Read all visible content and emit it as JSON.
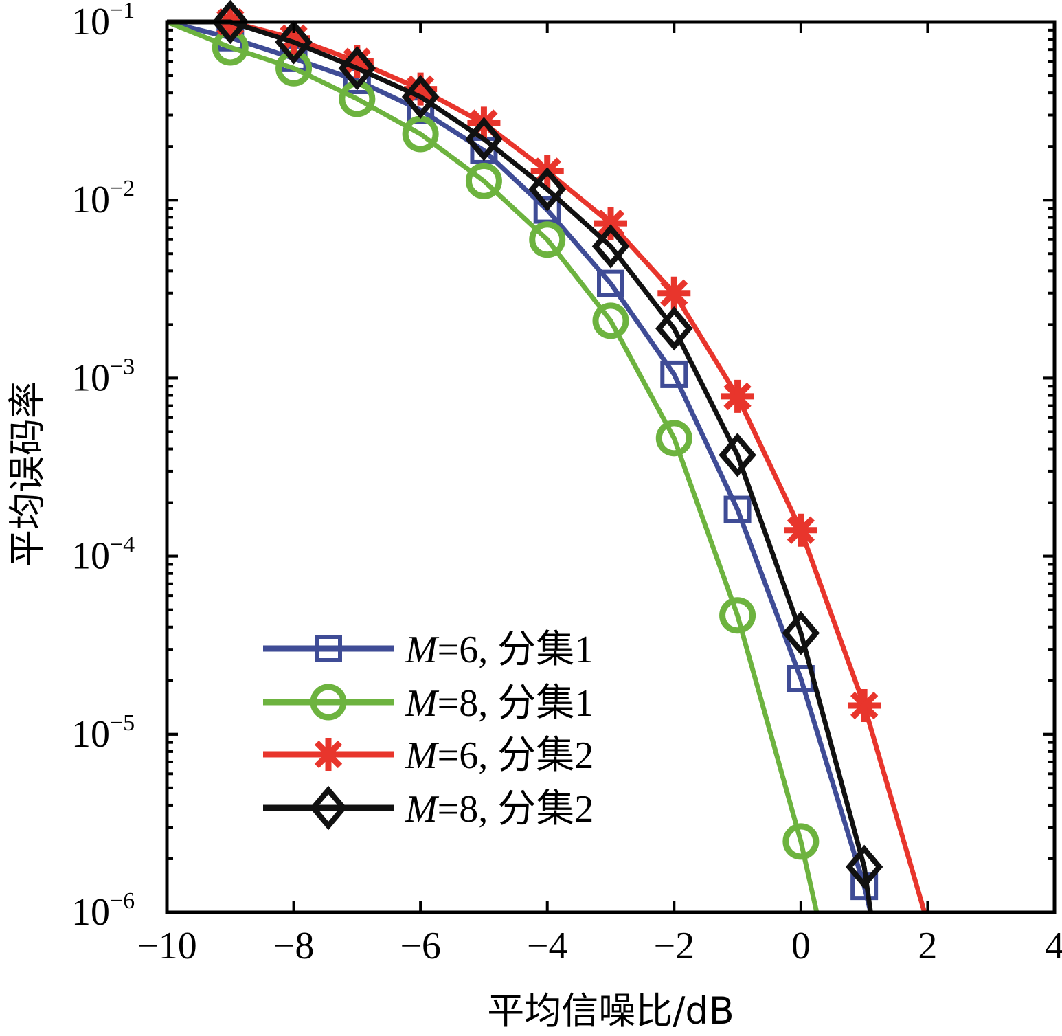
{
  "chart_data": {
    "type": "line",
    "xlabel": "平均信噪比/dB",
    "ylabel": "平均误码率",
    "xlim": [
      -10,
      4
    ],
    "ylim": [
      1e-06,
      0.1
    ],
    "yscale": "log",
    "grid": false,
    "legend_position": "bottom-left",
    "x_ticks": [
      -10,
      -8,
      -6,
      -4,
      -2,
      0,
      2,
      4
    ],
    "x_tick_labels": [
      "−10",
      "−8",
      "−6",
      "−4",
      "−2",
      "0",
      "2",
      "4"
    ],
    "y_tick_labels": [
      {
        "base": "10",
        "exp": "−1"
      },
      {
        "base": "10",
        "exp": "−2"
      },
      {
        "base": "10",
        "exp": "−3"
      },
      {
        "base": "10",
        "exp": "−4"
      },
      {
        "base": "10",
        "exp": "−5"
      },
      {
        "base": "10",
        "exp": "−6"
      }
    ],
    "series": [
      {
        "name": "M=6, 分集1",
        "name_italic": "M",
        "name_rest": "=6, 分集1",
        "color": "#3f4c96",
        "marker": "square",
        "x": [
          -10,
          -9,
          -8,
          -7,
          -6,
          -5,
          -4,
          -3,
          -2,
          -1,
          0,
          1,
          1.1
        ],
        "y": [
          0.1,
          0.0817,
          0.0625,
          0.047,
          0.032,
          0.019,
          0.0088,
          0.0034,
          0.00105,
          0.000183,
          2.05e-05,
          1.4e-06,
          1e-06
        ]
      },
      {
        "name": "M=8, 分集1",
        "name_italic": "M",
        "name_rest": "=8, 分集1",
        "color": "#6db33f",
        "marker": "circle",
        "x": [
          -10,
          -9,
          -8,
          -7,
          -6,
          -5,
          -4,
          -3,
          -2,
          -1,
          0,
          0.25
        ],
        "y": [
          0.1,
          0.072,
          0.055,
          0.037,
          0.0235,
          0.0128,
          0.006,
          0.0021,
          0.00046,
          4.65e-05,
          2.5e-06,
          1e-06
        ]
      },
      {
        "name": "M=6, 分集2",
        "name_italic": "M",
        "name_rest": "=6, 分集2",
        "color": "#e8352c",
        "marker": "asterisk",
        "x": [
          -10,
          -9,
          -8,
          -7,
          -6,
          -5,
          -4,
          -3,
          -2,
          -1,
          0,
          1,
          1.95
        ],
        "y": [
          0.1,
          0.1,
          0.081,
          0.06,
          0.042,
          0.027,
          0.0145,
          0.0074,
          0.003,
          0.00079,
          0.00014,
          1.45e-05,
          1e-06
        ]
      },
      {
        "name": "M=8, 分集2",
        "name_italic": "M",
        "name_rest": "=8, 分集2",
        "color": "#111111",
        "marker": "diamond",
        "x": [
          -10,
          -9,
          -8,
          -7,
          -6,
          -5,
          -4,
          -3,
          -2,
          -1,
          0,
          1,
          1.1
        ],
        "y": [
          0.1,
          0.1,
          0.077,
          0.055,
          0.038,
          0.022,
          0.0115,
          0.0055,
          0.0019,
          0.00037,
          3.7e-05,
          1.8e-06,
          1e-06
        ]
      }
    ]
  }
}
